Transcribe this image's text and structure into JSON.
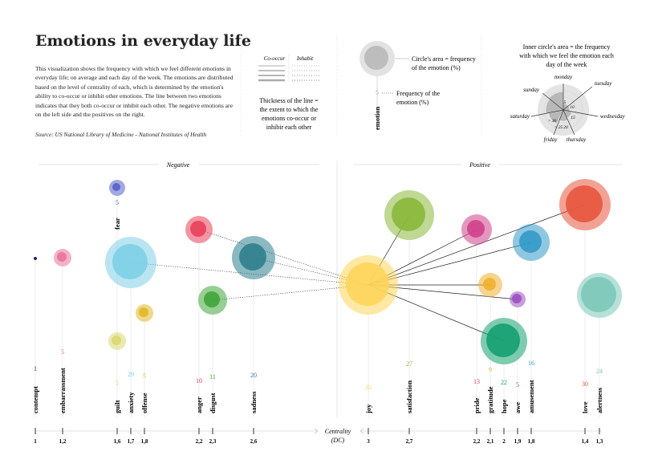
{
  "header": {
    "title": "Emotions in everyday life",
    "description": "This visualization shows the frequency with which we feel different emotions in everyday life; on average and each day of the week. The emotions are distributed based on the level of centrality of each, which is determined by the emotion's ability to co-occur or inhibit other emotions. The line between two emotions indicates that they both co-occur or inhibit each other. The negative emotions are on the left side and the positives on the right.",
    "source": "Source: US National Library of Medicine - National Institutes of Health"
  },
  "legend": {
    "cooccur": "Co-occur",
    "inhabit": "Inhabit",
    "thickness": [
      "Thickness of the line =",
      "the extent to which the",
      "emotions co-occur or",
      "inhibir each other"
    ],
    "circle_area": [
      "Circle's area = frequency",
      "of the emotion (%)"
    ],
    "frequency": [
      "Frequency of the",
      "emotion (%)"
    ],
    "sample_value": "5",
    "sample_label": "emotion",
    "inner_circle": [
      "Inner circle's area = the frequency",
      "with which we feel the emotion each",
      "day of the week"
    ],
    "days": [
      "monday",
      "tuesday",
      "wednesday",
      "thursday",
      "friday",
      "saturday",
      "sunday"
    ],
    "ring_values": [
      "5",
      "10",
      "15",
      "20",
      "> 25",
      "> 30"
    ]
  },
  "chart_data": {
    "type": "bubble",
    "sections": {
      "negative": "Negative",
      "positive": "Positive"
    },
    "xlabel": [
      "Centrality",
      "(DC)"
    ],
    "emotions": [
      {
        "name": "contempt",
        "valence": "negative",
        "centrality": "1",
        "frequency": 1,
        "color": "#1f2a5a"
      },
      {
        "name": "embarrassment",
        "valence": "negative",
        "centrality": "1,2",
        "frequency": 5,
        "color": "#e8739b"
      },
      {
        "name": "fear",
        "valence": "negative",
        "centrality": "1,6",
        "frequency": 5,
        "color": "#5560c8"
      },
      {
        "name": "guilt",
        "valence": "negative",
        "centrality": "1,6",
        "frequency": 5,
        "color": "#d8d870"
      },
      {
        "name": "anxiety",
        "valence": "negative",
        "centrality": "1,7",
        "frequency": 29,
        "color": "#7ecfe6"
      },
      {
        "name": "offense",
        "valence": "negative",
        "centrality": "1,8",
        "frequency": 5,
        "color": "#e0b828"
      },
      {
        "name": "anger",
        "valence": "negative",
        "centrality": "2,2",
        "frequency": 10,
        "color": "#e8405a"
      },
      {
        "name": "disgust",
        "valence": "negative",
        "centrality": "2,3",
        "frequency": 11,
        "color": "#3fa53a"
      },
      {
        "name": "sadness",
        "valence": "negative",
        "centrality": "2,6",
        "frequency": 20,
        "color": "#2e7f8e"
      },
      {
        "name": "joy",
        "valence": "positive",
        "centrality": "3",
        "frequency": 35,
        "color": "#fdd55a"
      },
      {
        "name": "satisfaction",
        "valence": "positive",
        "centrality": "2,7",
        "frequency": 27,
        "color": "#8ab83a"
      },
      {
        "name": "pride",
        "valence": "positive",
        "centrality": "2,2",
        "frequency": 13,
        "color": "#d0408a"
      },
      {
        "name": "gratitude",
        "valence": "positive",
        "centrality": "2,1",
        "frequency": 9,
        "color": "#f0b030"
      },
      {
        "name": "hope",
        "valence": "positive",
        "centrality": "2",
        "frequency": 22,
        "color": "#14a070"
      },
      {
        "name": "awe",
        "valence": "positive",
        "centrality": "1,9",
        "frequency": 5,
        "color": "#9a50c0"
      },
      {
        "name": "amusement",
        "valence": "positive",
        "centrality": "1,8",
        "frequency": 16,
        "color": "#3399c8"
      },
      {
        "name": "love",
        "valence": "positive",
        "centrality": "1,4",
        "frequency": 30,
        "color": "#e8553e"
      },
      {
        "name": "alertness",
        "valence": "positive",
        "centrality": "1,3",
        "frequency": 24,
        "color": "#7cc8b8"
      }
    ],
    "links": [
      {
        "from": "joy",
        "to": "satisfaction",
        "type": "co-occur"
      },
      {
        "from": "joy",
        "to": "pride",
        "type": "co-occur"
      },
      {
        "from": "joy",
        "to": "amusement",
        "type": "co-occur"
      },
      {
        "from": "joy",
        "to": "love",
        "type": "co-occur"
      },
      {
        "from": "joy",
        "to": "gratitude",
        "type": "co-occur"
      },
      {
        "from": "joy",
        "to": "awe",
        "type": "co-occur"
      },
      {
        "from": "joy",
        "to": "hope",
        "type": "co-occur"
      },
      {
        "from": "joy",
        "to": "anger",
        "type": "inhibit"
      },
      {
        "from": "joy",
        "to": "sadness",
        "type": "inhibit"
      },
      {
        "from": "joy",
        "to": "anxiety",
        "type": "inhibit"
      },
      {
        "from": "joy",
        "to": "disgust",
        "type": "inhibit"
      }
    ]
  }
}
